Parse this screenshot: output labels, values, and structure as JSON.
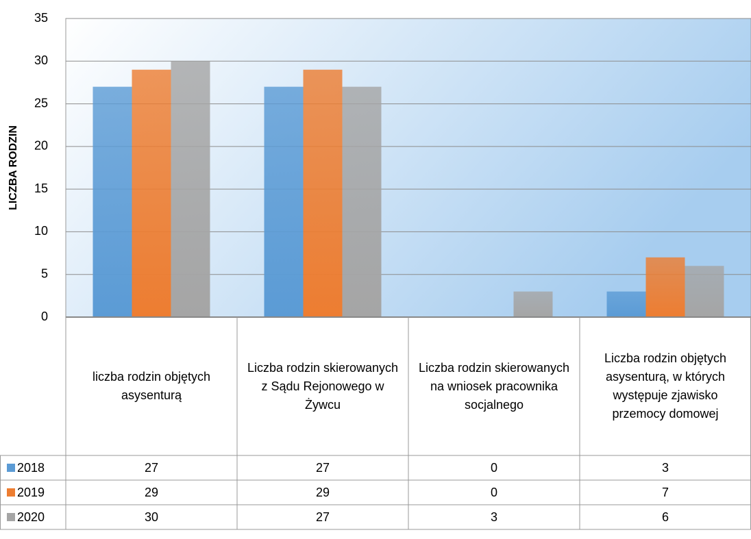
{
  "chart_data": {
    "type": "bar",
    "y_label": "LICZBA RODZIN",
    "categories": [
      "liczba rodzin objętych asysenturą",
      "Liczba rodzin skierowanych z Sądu Rejonowego w Żywcu",
      "Liczba rodzin skierowanych na wniosek pracownika socjalnego",
      "Liczba rodzin objętych asysenturą, w których występuje zjawisko przemocy domowej"
    ],
    "series": [
      {
        "name": "2018",
        "color": "#5b9bd5",
        "values": [
          27,
          27,
          0,
          3
        ]
      },
      {
        "name": "2019",
        "color": "#ed7d31",
        "values": [
          29,
          29,
          0,
          7
        ]
      },
      {
        "name": "2020",
        "color": "#a5a5a5",
        "values": [
          30,
          27,
          3,
          6
        ]
      }
    ],
    "ylim": [
      0,
      35
    ],
    "yticks": [
      0,
      5,
      10,
      15,
      20,
      25,
      30,
      35
    ],
    "grid": true,
    "data_table": true
  }
}
